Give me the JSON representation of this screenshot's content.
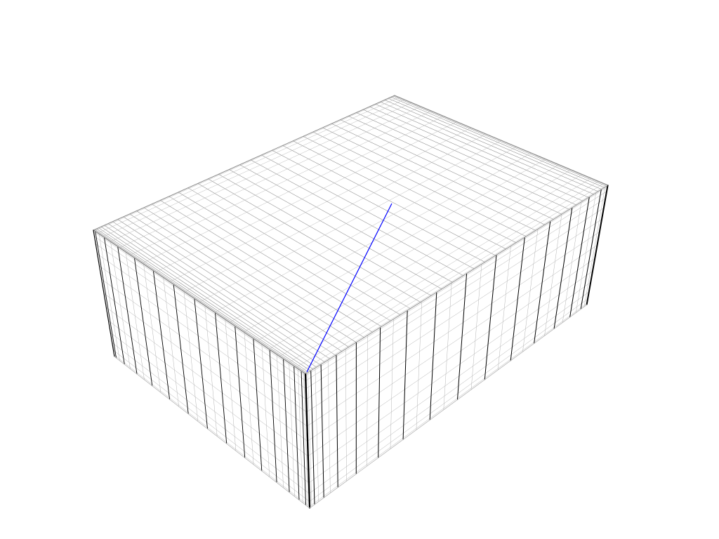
{
  "scene": {
    "background": "#ffffff",
    "object": "box-mesh",
    "rendering": "wireframe",
    "colors": {
      "major_edge": "#000000",
      "minor_edge": "#b4b4b4",
      "top_edge": "#8c8c8c",
      "axis_line": "#0000ff"
    },
    "faces": [
      "top",
      "left",
      "right"
    ],
    "highlight": "axis-line"
  }
}
